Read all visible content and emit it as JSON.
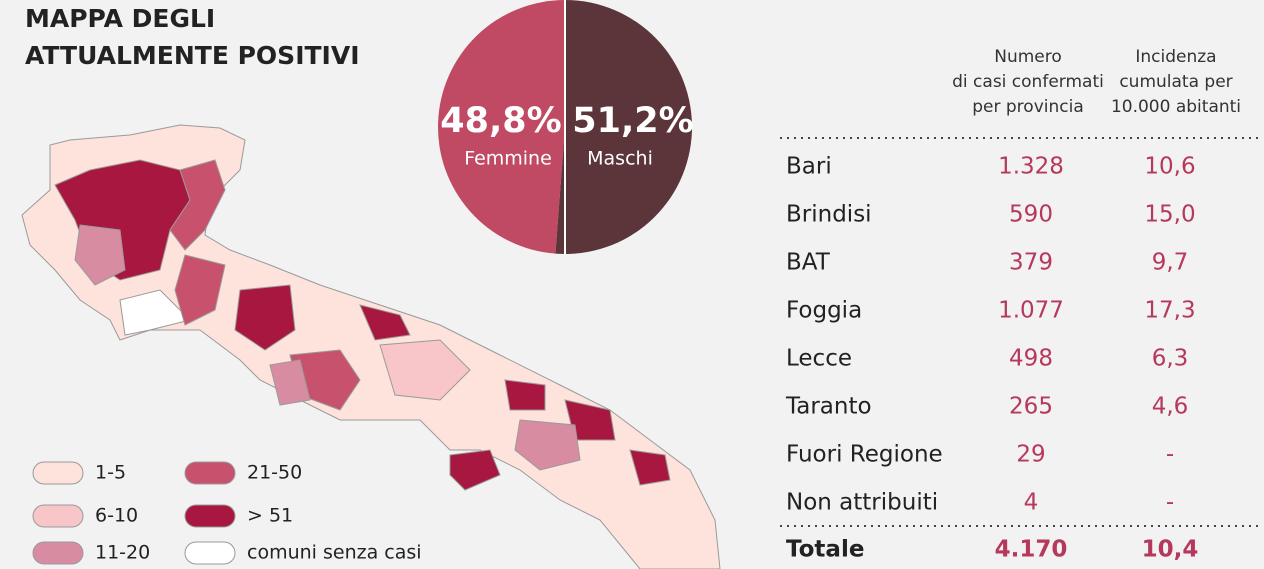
{
  "title": [
    "MAPPA DEGLI",
    "ATTUALMENTE POSITIVI"
  ],
  "chart_data": {
    "type": "pie",
    "categories": [
      "Femmine",
      "Maschi"
    ],
    "values": [
      48.8,
      51.2
    ],
    "value_labels": [
      "48,8%",
      "51,2%"
    ],
    "colors": [
      "#c04a63",
      "#5b353a"
    ]
  },
  "legend": [
    {
      "label": "1-5",
      "color": "#fde3dc"
    },
    {
      "label": "6-10",
      "color": "#f8c5c8"
    },
    {
      "label": "11-20",
      "color": "#d88ca2"
    },
    {
      "label": "21-50",
      "color": "#c8526e"
    },
    {
      "label": "> 51",
      "color": "#a8173f"
    },
    {
      "label": "comuni senza casi",
      "color": "#ffffff"
    }
  ],
  "table": {
    "headers": [
      [
        "Numero",
        "di casi confermati",
        "per provincia"
      ],
      [
        "Incidenza",
        "cumulata per",
        "10.000 abitanti"
      ]
    ],
    "rows": [
      [
        "Bari",
        "1.328",
        "10,6"
      ],
      [
        "Brindisi",
        "590",
        "15,0"
      ],
      [
        "BAT",
        "379",
        "9,7"
      ],
      [
        "Foggia",
        "1.077",
        "17,3"
      ],
      [
        "Lecce",
        "498",
        "6,3"
      ],
      [
        "Taranto",
        "265",
        "4,6"
      ],
      [
        "Fuori Regione",
        "29",
        "-"
      ],
      [
        "Non attribuiti",
        "4",
        "-"
      ]
    ],
    "total": [
      "Totale",
      "4.170",
      "10,4"
    ]
  }
}
